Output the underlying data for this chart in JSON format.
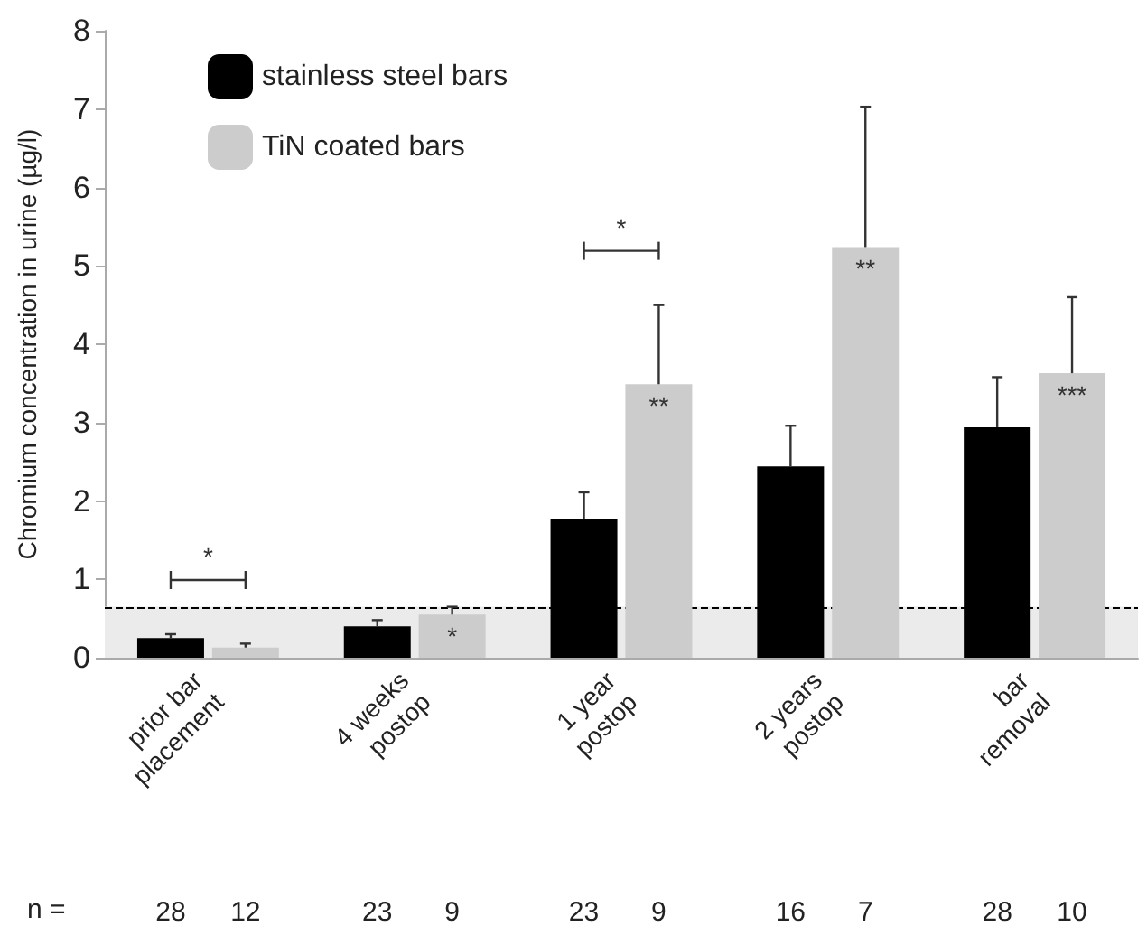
{
  "chart_data": {
    "type": "bar",
    "ylabel": "Chromium concentration in urine (µg/l)",
    "categories": [
      "prior bar\nplacement",
      "4 weeks\npostop",
      "1 year\npostop",
      "2 years\npostop",
      "bar\nremoval"
    ],
    "series": [
      {
        "name": "stainless steel bars",
        "color": "#000000",
        "values": [
          0.25,
          0.4,
          1.77,
          2.44,
          2.94
        ],
        "errors": [
          [
            0.25,
            0.3
          ],
          [
            0.4,
            0.48
          ],
          [
            1.77,
            2.11
          ],
          [
            2.44,
            2.96
          ],
          [
            2.94,
            3.58
          ]
        ]
      },
      {
        "name": "TiN coated bars",
        "color": "#cccccc",
        "values": [
          0.13,
          0.55,
          3.49,
          5.24,
          3.63
        ],
        "errors": [
          [
            0.13,
            0.18
          ],
          [
            0.55,
            0.65
          ],
          [
            3.49,
            4.5
          ],
          [
            5.24,
            7.03
          ],
          [
            3.63,
            4.6
          ]
        ],
        "value_labels": [
          null,
          "*",
          "**",
          "**",
          "***"
        ]
      }
    ],
    "ylim": [
      0,
      8
    ],
    "yticks": [
      0,
      1,
      2,
      3,
      4,
      5,
      6,
      7,
      8
    ],
    "grid": false,
    "legend": "top left",
    "ref_lines": [
      {
        "axis": "y",
        "value": 0.65,
        "color": "#000000",
        "line_style": "dashed"
      }
    ],
    "bands": [
      {
        "axis": "y",
        "from": 0,
        "to": 0.65,
        "color": "#ebebeb"
      }
    ],
    "annotations": [
      "n =",
      "*",
      "*",
      "28",
      "12",
      "23",
      "9",
      "23",
      "9",
      "16",
      "7",
      "28",
      "10"
    ]
  }
}
